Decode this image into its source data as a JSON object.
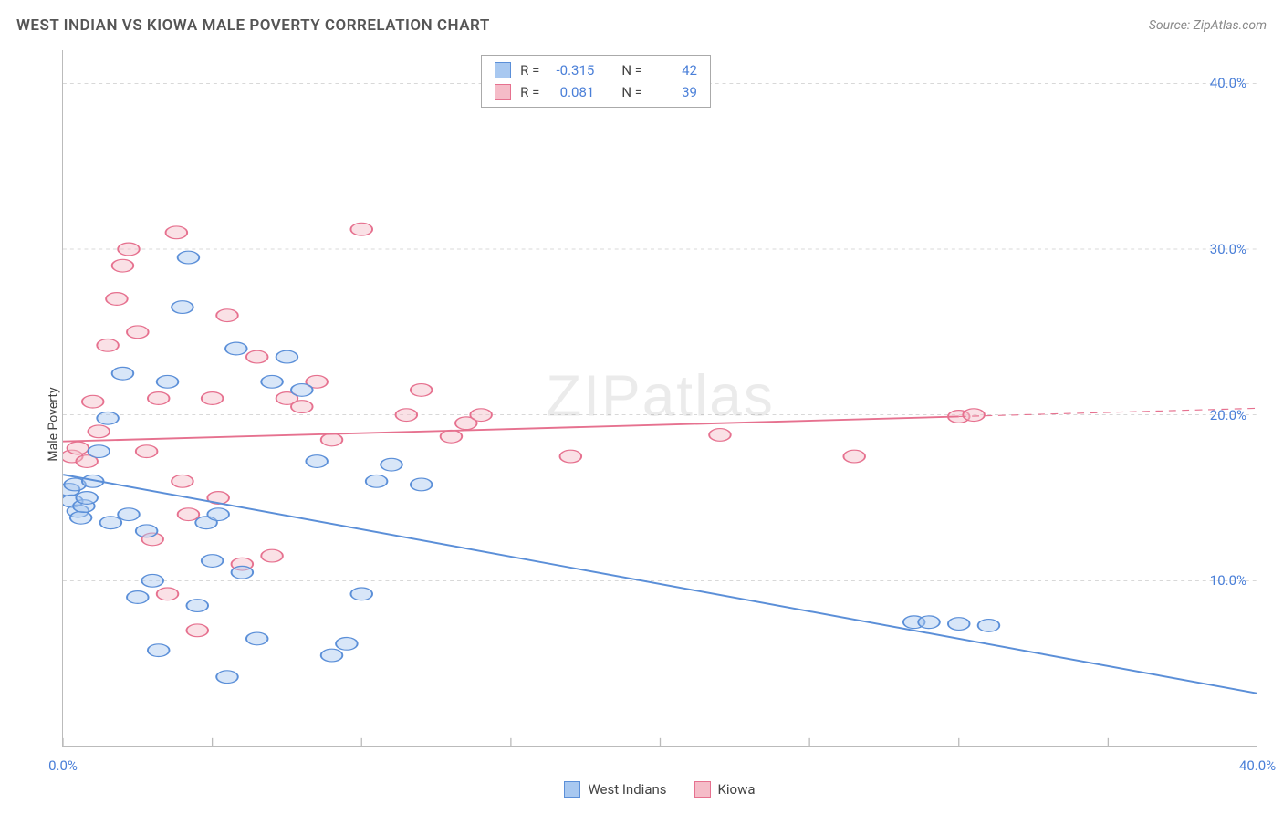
{
  "title": "WEST INDIAN VS KIOWA MALE POVERTY CORRELATION CHART",
  "source": "Source: ZipAtlas.com",
  "ylabel": "Male Poverty",
  "watermark_a": "ZIP",
  "watermark_b": "atlas",
  "chart": {
    "type": "scatter",
    "xlim": [
      0,
      40
    ],
    "ylim": [
      0,
      42
    ],
    "y_ticks": [
      10,
      20,
      30,
      40
    ],
    "y_tick_labels": [
      "10.0%",
      "20.0%",
      "30.0%",
      "40.0%"
    ],
    "x_ticks": [
      0,
      5,
      10,
      15,
      20,
      25,
      30,
      35,
      40
    ],
    "x_tick_show_labels": {
      "0": "0.0%",
      "40": "40.0%"
    },
    "grid_color": "#cccccc",
    "axis_color": "#bbbbbb",
    "background_color": "#ffffff",
    "tick_label_color": "#4a7fd8",
    "marker_radius": 9,
    "marker_opacity": 0.45,
    "trend_line_width": 2.5,
    "trend_dash_width": 1.5
  },
  "series": [
    {
      "name": "West Indians",
      "color_fill": "#a8c8f0",
      "color_stroke": "#5b8fd8",
      "stats": {
        "R": "-0.315",
        "N": "42"
      },
      "trend": {
        "solid": {
          "x1": 0,
          "y1": 16.4,
          "x2": 40,
          "y2": 3.2
        },
        "dash": null
      },
      "points": [
        [
          0.2,
          15.5
        ],
        [
          0.3,
          14.8
        ],
        [
          0.4,
          15.8
        ],
        [
          0.5,
          14.2
        ],
        [
          0.6,
          13.8
        ],
        [
          0.7,
          14.5
        ],
        [
          0.8,
          15.0
        ],
        [
          1.0,
          16.0
        ],
        [
          1.2,
          17.8
        ],
        [
          1.5,
          19.8
        ],
        [
          1.6,
          13.5
        ],
        [
          2.0,
          22.5
        ],
        [
          2.2,
          14.0
        ],
        [
          2.5,
          9.0
        ],
        [
          2.8,
          13.0
        ],
        [
          3.0,
          10.0
        ],
        [
          3.2,
          5.8
        ],
        [
          3.5,
          22.0
        ],
        [
          4.0,
          26.5
        ],
        [
          4.2,
          29.5
        ],
        [
          4.5,
          8.5
        ],
        [
          4.8,
          13.5
        ],
        [
          5.0,
          11.2
        ],
        [
          5.2,
          14.0
        ],
        [
          5.5,
          4.2
        ],
        [
          5.8,
          24.0
        ],
        [
          6.0,
          10.5
        ],
        [
          6.5,
          6.5
        ],
        [
          7.0,
          22.0
        ],
        [
          7.5,
          23.5
        ],
        [
          8.0,
          21.5
        ],
        [
          8.5,
          17.2
        ],
        [
          9.0,
          5.5
        ],
        [
          9.5,
          6.2
        ],
        [
          10.0,
          9.2
        ],
        [
          10.5,
          16.0
        ],
        [
          11.0,
          17.0
        ],
        [
          12.0,
          15.8
        ],
        [
          28.5,
          7.5
        ],
        [
          29.0,
          7.5
        ],
        [
          30.0,
          7.4
        ],
        [
          31.0,
          7.3
        ]
      ]
    },
    {
      "name": "Kiowa",
      "color_fill": "#f5bcc8",
      "color_stroke": "#e6718f",
      "stats": {
        "R": "0.081",
        "N": "39"
      },
      "trend": {
        "solid": {
          "x1": 0,
          "y1": 18.4,
          "x2": 30,
          "y2": 19.9
        },
        "dash": {
          "x1": 30,
          "y1": 19.9,
          "x2": 40,
          "y2": 20.4
        }
      },
      "points": [
        [
          0.3,
          17.5
        ],
        [
          0.5,
          18.0
        ],
        [
          0.8,
          17.2
        ],
        [
          1.0,
          20.8
        ],
        [
          1.2,
          19.0
        ],
        [
          1.5,
          24.2
        ],
        [
          1.8,
          27.0
        ],
        [
          2.0,
          29.0
        ],
        [
          2.2,
          30.0
        ],
        [
          2.5,
          25.0
        ],
        [
          2.8,
          17.8
        ],
        [
          3.0,
          12.5
        ],
        [
          3.2,
          21.0
        ],
        [
          3.5,
          9.2
        ],
        [
          3.8,
          31.0
        ],
        [
          4.0,
          16.0
        ],
        [
          4.2,
          14.0
        ],
        [
          4.5,
          7.0
        ],
        [
          5.0,
          21.0
        ],
        [
          5.2,
          15.0
        ],
        [
          5.5,
          26.0
        ],
        [
          6.0,
          11.0
        ],
        [
          6.5,
          23.5
        ],
        [
          7.0,
          11.5
        ],
        [
          7.5,
          21.0
        ],
        [
          8.0,
          20.5
        ],
        [
          8.5,
          22.0
        ],
        [
          9.0,
          18.5
        ],
        [
          10.0,
          31.2
        ],
        [
          11.5,
          20.0
        ],
        [
          12.0,
          21.5
        ],
        [
          13.0,
          18.7
        ],
        [
          13.5,
          19.5
        ],
        [
          14.0,
          20.0
        ],
        [
          17.0,
          17.5
        ],
        [
          22.0,
          18.8
        ],
        [
          26.5,
          17.5
        ],
        [
          30.0,
          19.9
        ],
        [
          30.5,
          20.0
        ]
      ]
    }
  ],
  "stats_labels": {
    "R": "R =",
    "N": "N ="
  },
  "legend_labels": [
    "West Indians",
    "Kiowa"
  ]
}
